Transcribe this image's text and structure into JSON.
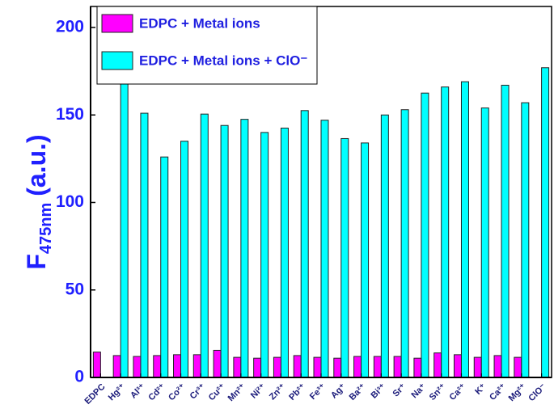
{
  "chart_data": {
    "type": "bar",
    "y_label": "F",
    "y_label_subscript": "475nm",
    "y_label_suffix": "(a.u.)",
    "categories": [
      "EDPC",
      "Hg²⁺",
      "Al³⁺",
      "Cd²⁺",
      "Co²⁺",
      "Cr³⁺",
      "Cu²⁺",
      "Mn²⁺",
      "Ni²⁺",
      "Zn²⁺",
      "Pb²⁺",
      "Fe³⁺",
      "Ag⁺",
      "Ba²⁺",
      "Bi³⁺",
      "Sr⁺",
      "Na⁺",
      "Sn²⁺",
      "Ca²⁺",
      "K⁺",
      "Ca²⁺",
      "Mg²⁺",
      "ClO⁻"
    ],
    "series": [
      {
        "name": "EDPC  + Metal ions",
        "color": "#ff00ff",
        "values": [
          14.5,
          12.5,
          12,
          12.5,
          13,
          13,
          15.5,
          11.5,
          11,
          11.5,
          12.5,
          11.5,
          11,
          12,
          12,
          12,
          11,
          14,
          13,
          11.5,
          12.5,
          11.5,
          null
        ]
      },
      {
        "name": "EDPC  + Metal ions + ClO⁻",
        "color": "#00ffff",
        "values": [
          null,
          170,
          151,
          126,
          135,
          150.5,
          144,
          147.5,
          140,
          142.5,
          152.5,
          147,
          136.5,
          134,
          150,
          153,
          162.5,
          166,
          169,
          154,
          167,
          157,
          177
        ]
      }
    ],
    "ylim": [
      0,
      212
    ],
    "yticks": [
      0,
      50,
      100,
      150,
      200
    ],
    "legend": "upper-left"
  }
}
